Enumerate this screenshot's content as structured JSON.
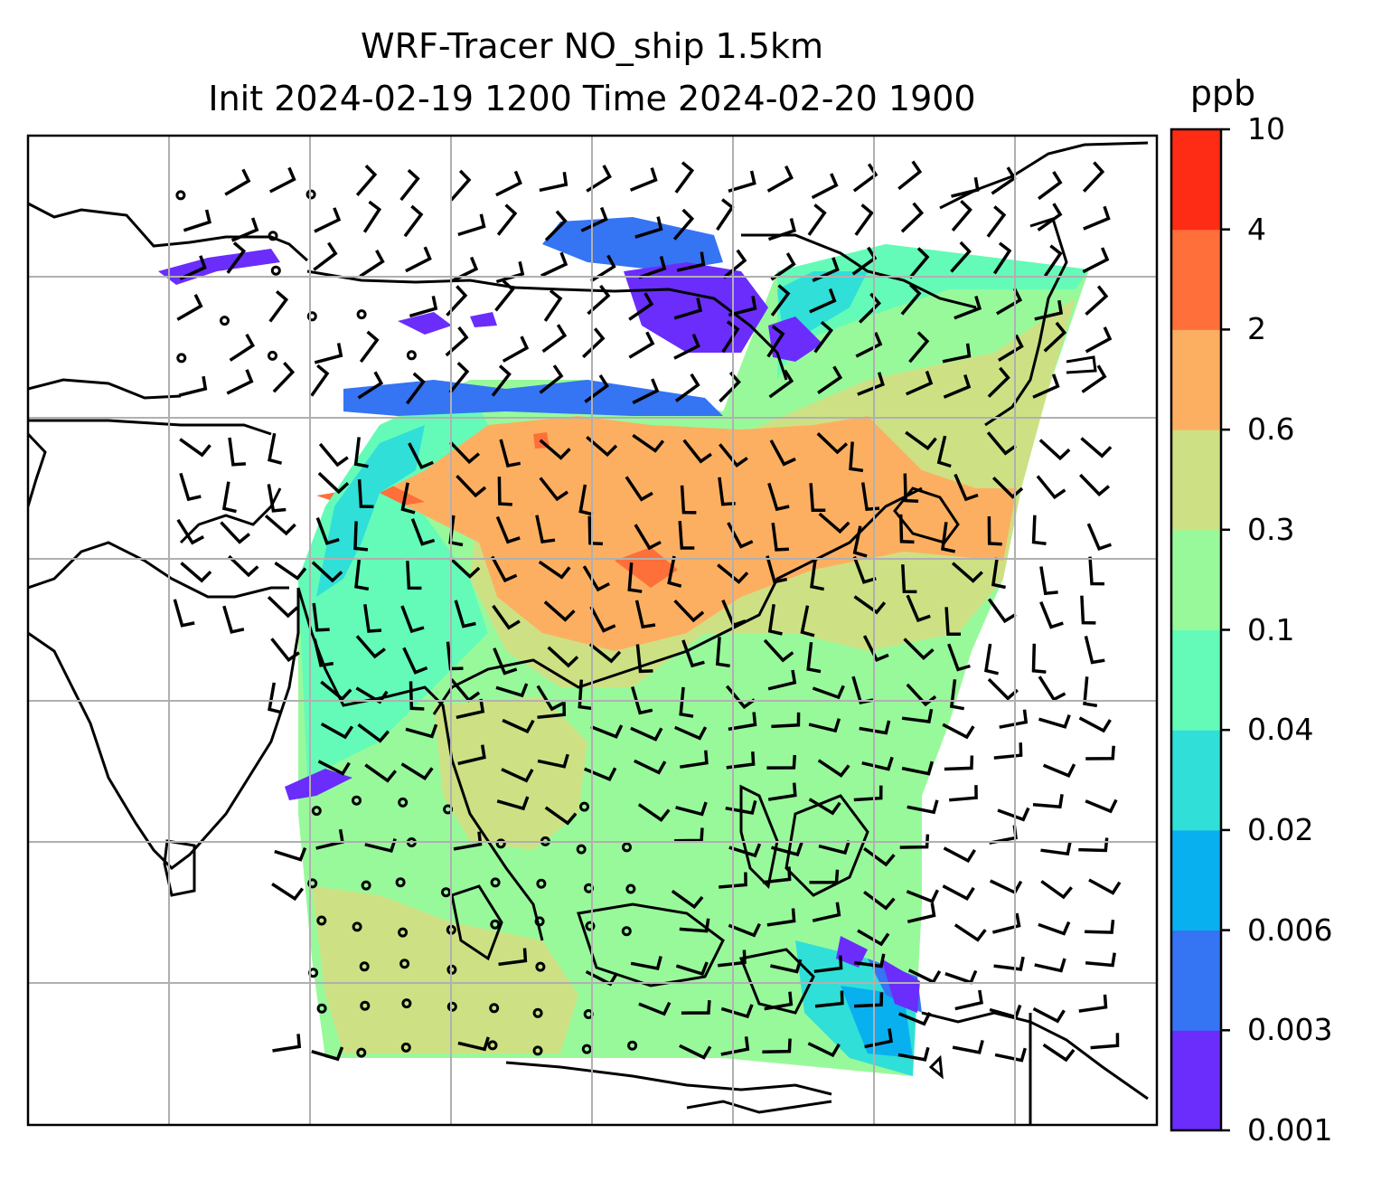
{
  "title": {
    "line1": "WRF-Tracer NO_ship 1.5km",
    "line2": "Init 2024-02-19 1200 Time 2024-02-20 1900"
  },
  "colorbar": {
    "unit": "ppb",
    "levels": [
      "0.001",
      "0.003",
      "0.006",
      "0.02",
      "0.04",
      "0.1",
      "0.3",
      "0.6",
      "2",
      "4",
      "10"
    ],
    "colors": [
      "#6a2dfb",
      "#3574f3",
      "#08b0ef",
      "#30dfd8",
      "#64fbb8",
      "#98f99b",
      "#cde184",
      "#fdaf61",
      "#fe6f39",
      "#fe2b15"
    ]
  },
  "map": {
    "gridlines": true,
    "coastline_color": "#000000",
    "grid_color": "#b0b0b0",
    "calm_marker": "circle",
    "wind_barbs": true
  }
}
